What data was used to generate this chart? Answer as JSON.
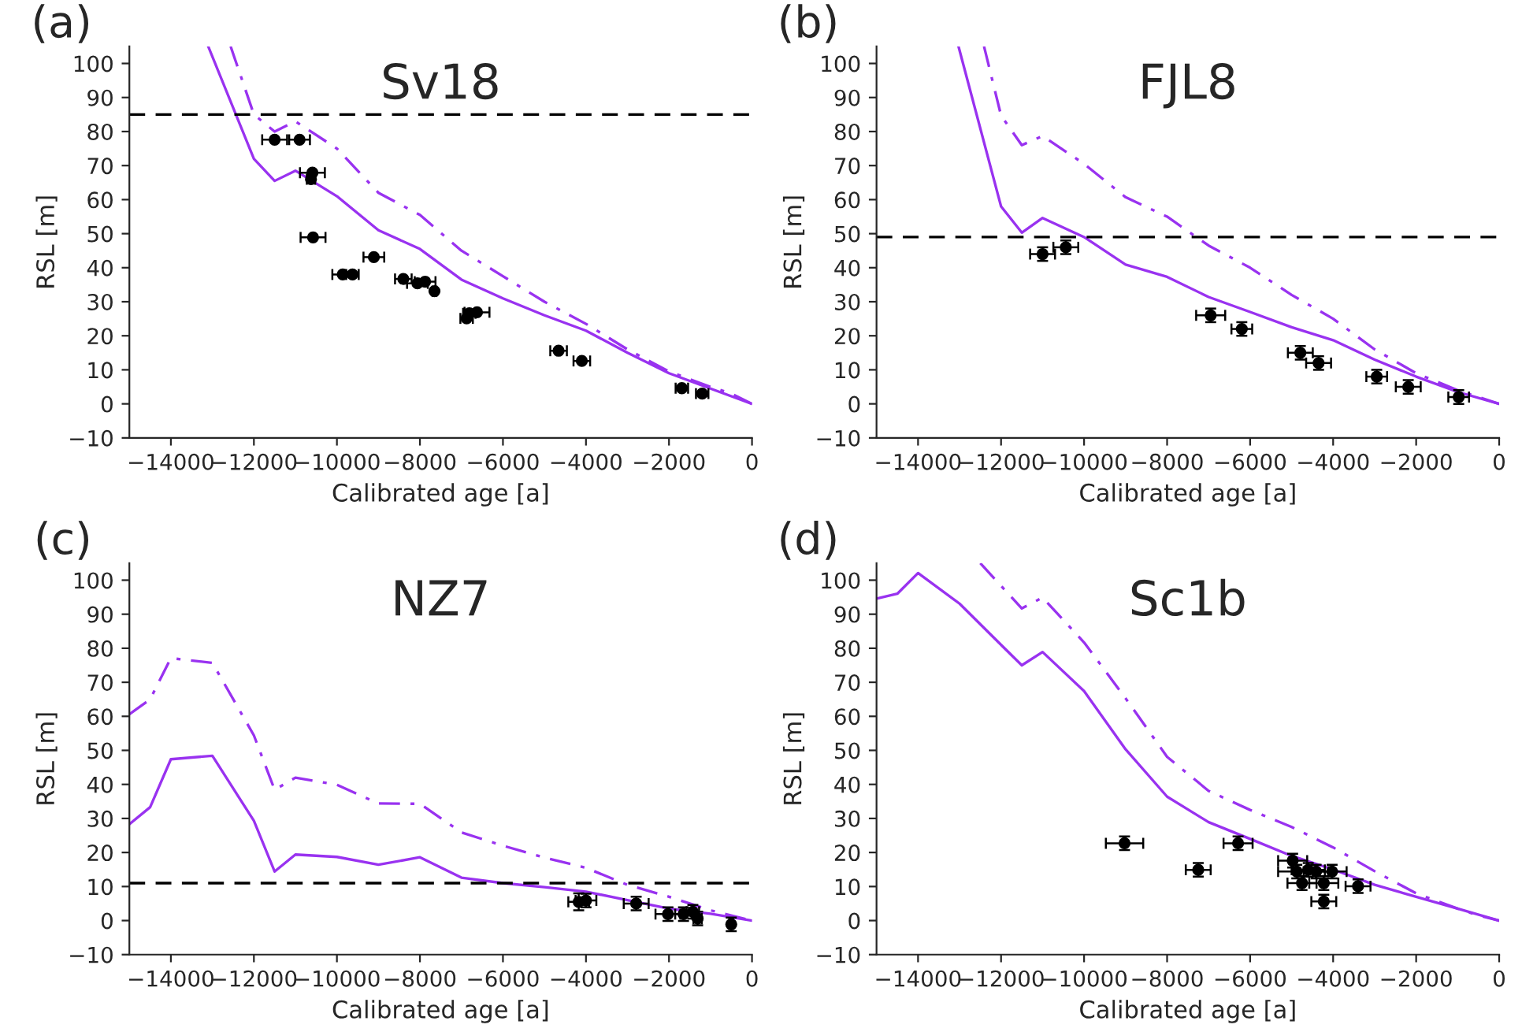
{
  "chart_data": [
    {
      "type": "line",
      "title": "Sv18",
      "xlabel": "Calibrated age [a]",
      "ylabel": "RSL [m]",
      "annotations": [
        "(a)"
      ],
      "xlim": [
        -15000,
        0
      ],
      "ylim": [
        -10,
        105
      ],
      "xticks": [
        -14000,
        -12000,
        -10000,
        -8000,
        -6000,
        -4000,
        -2000,
        0
      ],
      "yticks": [
        -10,
        0,
        10,
        20,
        30,
        40,
        50,
        60,
        70,
        80,
        90,
        100
      ],
      "grid": false,
      "legend": false,
      "ref_lines": [
        {
          "axis": "y",
          "value": 85,
          "color": "#000000",
          "line_style": "dashed"
        }
      ],
      "series": [
        {
          "type": "line",
          "line_style": "solid",
          "color": "#9932f0",
          "x": [
            -13100,
            -12000,
            -11500,
            -11000,
            -10000,
            -9000,
            -8000,
            -7000,
            -6000,
            -5000,
            -4000,
            -3000,
            -2000,
            -1000,
            0
          ],
          "values": [
            105,
            72,
            65.5,
            68.5,
            61,
            51,
            45.5,
            36.5,
            31,
            26,
            21.5,
            15,
            9,
            4.5,
            0
          ]
        },
        {
          "type": "line",
          "line_style": "dashdot",
          "color": "#9932f0",
          "x": [
            -12560,
            -12000,
            -11500,
            -11000,
            -10000,
            -9000,
            -8000,
            -7000,
            -6000,
            -5000,
            -4000,
            -3000,
            -2000,
            -1000,
            -500,
            0
          ],
          "values": [
            105,
            85,
            80,
            83,
            75,
            62,
            55.5,
            45,
            37.5,
            30,
            23.5,
            16,
            9.5,
            5,
            3,
            0
          ]
        },
        {
          "type": "scatter",
          "marker": "circle",
          "color": "#000000",
          "x": [
            -11500,
            -10900,
            -10590,
            -10625,
            -10575,
            -9110,
            -9860,
            -9625,
            -8400,
            -8060,
            -7875,
            -7650,
            -6875,
            -6810,
            -6625,
            -4660,
            -4100,
            -1690,
            -1200
          ],
          "values": [
            77.6,
            77.6,
            67.9,
            66,
            48.9,
            43.1,
            38,
            38,
            36.7,
            35.4,
            35.9,
            33.1,
            25.1,
            26.6,
            26.9,
            15.6,
            12.6,
            4.6,
            3
          ],
          "xerrors": [
            300,
            250,
            300,
            100,
            300,
            250,
            250,
            150,
            200,
            250,
            250,
            50,
            150,
            150,
            300,
            200,
            200,
            150,
            150
          ]
        }
      ]
    },
    {
      "type": "line",
      "title": "FJL8",
      "xlabel": "Calibrated age [a]",
      "ylabel": "RSL [m]",
      "annotations": [
        "(b)"
      ],
      "xlim": [
        -15000,
        0
      ],
      "ylim": [
        -10,
        105
      ],
      "xticks": [
        -14000,
        -12000,
        -10000,
        -8000,
        -6000,
        -4000,
        -2000,
        0
      ],
      "yticks": [
        -10,
        0,
        10,
        20,
        30,
        40,
        50,
        60,
        70,
        80,
        90,
        100
      ],
      "grid": false,
      "legend": false,
      "ref_lines": [
        {
          "axis": "y",
          "value": 49,
          "color": "#000000",
          "line_style": "dashed"
        }
      ],
      "series": [
        {
          "type": "line",
          "line_style": "solid",
          "color": "#9932f0",
          "x": [
            -13025,
            -12000,
            -11500,
            -11000,
            -10000,
            -9000,
            -8000,
            -7000,
            -6000,
            -5000,
            -4000,
            -3000,
            -2000,
            -1000,
            0
          ],
          "values": [
            105,
            58,
            50.3,
            54.6,
            49,
            40.9,
            37.3,
            31.4,
            27,
            22.5,
            18.7,
            13,
            8,
            3.5,
            0
          ]
        },
        {
          "type": "line",
          "line_style": "dashdot",
          "color": "#9932f0",
          "x": [
            -12410,
            -12000,
            -11500,
            -11000,
            -10000,
            -9000,
            -8000,
            -7000,
            -6000,
            -5000,
            -4000,
            -3000,
            -2000,
            -1000,
            -500,
            0
          ],
          "values": [
            105,
            84.7,
            76,
            78.7,
            70.5,
            60.7,
            55,
            46.5,
            40,
            32,
            25,
            16,
            9,
            4,
            2,
            0
          ]
        },
        {
          "type": "scatter",
          "marker": "circle",
          "color": "#000000",
          "x": [
            -11000,
            -10440,
            -6950,
            -6200,
            -4790,
            -4350,
            -2950,
            -2190,
            -975
          ],
          "values": [
            44,
            46,
            26,
            22,
            15,
            12,
            8,
            5,
            2
          ],
          "xerrors": [
            300,
            300,
            350,
            250,
            300,
            300,
            250,
            300,
            250
          ],
          "errors": [
            2,
            2,
            2,
            2,
            2,
            2,
            2,
            2,
            2
          ]
        }
      ]
    },
    {
      "type": "line",
      "title": "NZ7",
      "xlabel": "Calibrated age [a]",
      "ylabel": "RSL [m]",
      "annotations": [
        "(c)"
      ],
      "xlim": [
        -15000,
        0
      ],
      "ylim": [
        -10,
        105
      ],
      "xticks": [
        -14000,
        -12000,
        -10000,
        -8000,
        -6000,
        -4000,
        -2000,
        0
      ],
      "yticks": [
        -10,
        0,
        10,
        20,
        30,
        40,
        50,
        60,
        70,
        80,
        90,
        100
      ],
      "grid": false,
      "legend": false,
      "ref_lines": [
        {
          "axis": "y",
          "value": 11,
          "color": "#000000",
          "line_style": "dashed"
        }
      ],
      "series": [
        {
          "type": "line",
          "line_style": "solid",
          "color": "#9932f0",
          "x": [
            -15000,
            -14500,
            -14000,
            -13000,
            -12000,
            -11500,
            -11000,
            -10000,
            -9000,
            -8000,
            -7000,
            -6000,
            -5000,
            -4000,
            -3000,
            -2000,
            -1000,
            0
          ],
          "values": [
            28.3,
            33.3,
            47.4,
            48.4,
            29.3,
            14.4,
            19.4,
            18.7,
            16.4,
            18.6,
            12.6,
            11,
            9.8,
            8.5,
            6,
            3.5,
            2,
            0
          ]
        },
        {
          "type": "line",
          "line_style": "dashdot",
          "color": "#9932f0",
          "x": [
            -15000,
            -14500,
            -14000,
            -13000,
            -12000,
            -11500,
            -11000,
            -10000,
            -9000,
            -8000,
            -7000,
            -6000,
            -5000,
            -4000,
            -3000,
            -2000,
            -1500,
            -1000,
            -500,
            0
          ],
          "values": [
            60.6,
            65,
            77.1,
            75.7,
            54.4,
            38.4,
            42,
            39.9,
            34.4,
            34.3,
            25.9,
            22,
            18.5,
            15.5,
            10.5,
            7,
            5,
            3,
            1.5,
            0
          ]
        },
        {
          "type": "scatter",
          "marker": "circle",
          "color": "#000000",
          "x": [
            -4175,
            -4000,
            -2790,
            -2025,
            -1650,
            -1425,
            -1310,
            -500
          ],
          "values": [
            5.5,
            5.9,
            5,
            1.9,
            1.9,
            2.6,
            0.6,
            -1.1
          ],
          "xerrors": [
            250,
            250,
            300,
            300,
            200,
            150,
            100,
            50
          ],
          "errors": [
            2.5,
            2,
            2,
            2,
            2,
            2,
            2,
            2
          ]
        }
      ]
    },
    {
      "type": "line",
      "title": "Sc1b",
      "xlabel": "Calibrated age [a]",
      "ylabel": "RSL [m]",
      "annotations": [
        "(d)"
      ],
      "xlim": [
        -15000,
        0
      ],
      "ylim": [
        -10,
        105
      ],
      "xticks": [
        -14000,
        -12000,
        -10000,
        -8000,
        -6000,
        -4000,
        -2000,
        0
      ],
      "yticks": [
        -10,
        0,
        10,
        20,
        30,
        40,
        50,
        60,
        70,
        80,
        90,
        100
      ],
      "grid": false,
      "legend": false,
      "series": [
        {
          "type": "line",
          "line_style": "solid",
          "color": "#9932f0",
          "x": [
            -15000,
            -14500,
            -14000,
            -13000,
            -12000,
            -11500,
            -11000,
            -10000,
            -9000,
            -8000,
            -7000,
            -6000,
            -5000,
            -4000,
            -3000,
            -2000,
            -1000,
            0
          ],
          "values": [
            94.6,
            96,
            102.1,
            93.1,
            81,
            75,
            78.9,
            67.4,
            50.3,
            36.4,
            28.9,
            24,
            19,
            15,
            10.5,
            7,
            3.5,
            0
          ]
        },
        {
          "type": "line",
          "line_style": "dashdot",
          "color": "#9932f0",
          "x": [
            -12500,
            -11500,
            -11000,
            -10000,
            -9000,
            -8000,
            -7000,
            -6000,
            -5000,
            -4000,
            -3000,
            -2000,
            -1000,
            -500,
            0
          ],
          "values": [
            105,
            91.7,
            94.9,
            81.7,
            65.3,
            48.1,
            38.1,
            32.5,
            27.5,
            21.5,
            14.5,
            8,
            3.5,
            1.5,
            0
          ]
        },
        {
          "type": "scatter",
          "marker": "circle",
          "color": "#000000",
          "x": [
            -9025,
            -6290,
            -7250,
            -4975,
            -4875,
            -4600,
            -4410,
            -4025,
            -4750,
            -4225,
            -4225,
            -3400
          ],
          "values": [
            22.7,
            22.7,
            14.9,
            17.6,
            14.4,
            14.9,
            14.4,
            14.4,
            11,
            11,
            5.6,
            10.1
          ],
          "xerrors": [
            450,
            350,
            300,
            350,
            450,
            400,
            300,
            350,
            350,
            350,
            300,
            300
          ],
          "errors": [
            2,
            2,
            2,
            2,
            2,
            2,
            2,
            2,
            2,
            2,
            2,
            2
          ]
        }
      ]
    }
  ]
}
